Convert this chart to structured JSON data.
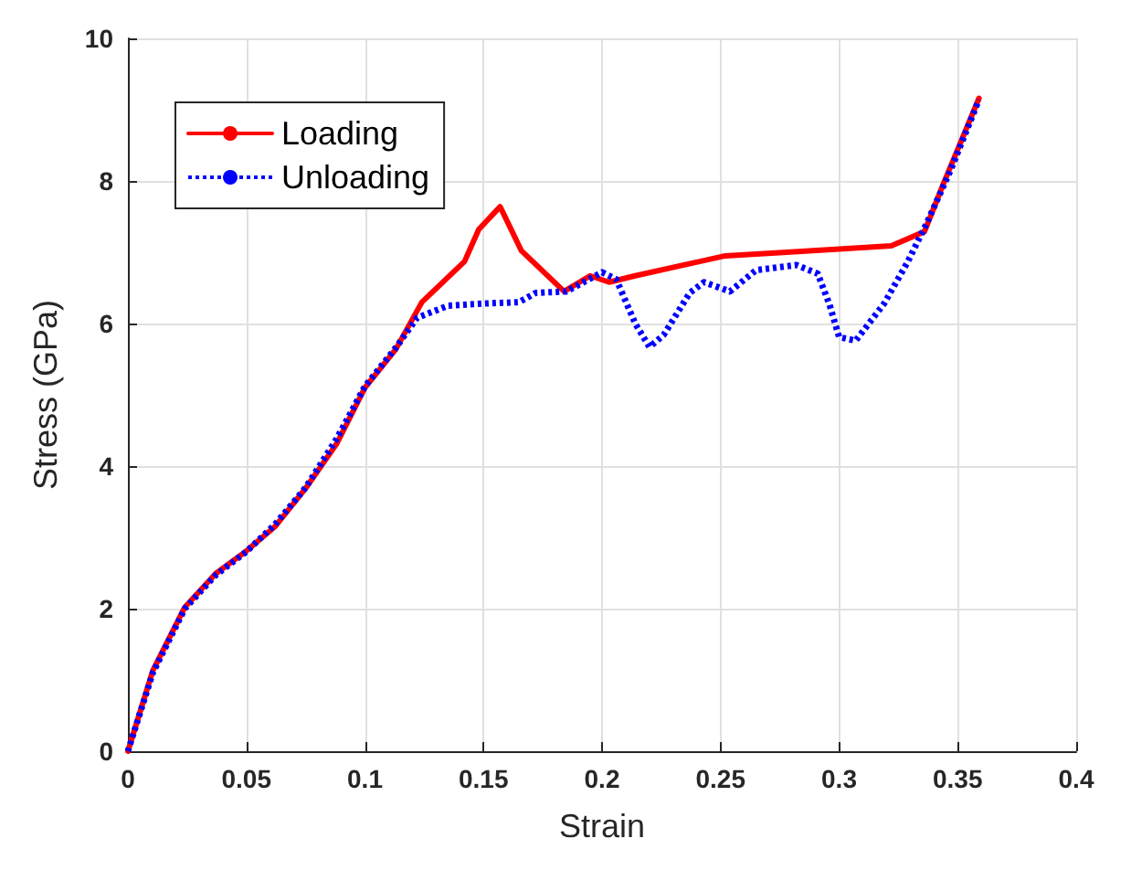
{
  "chart_data": {
    "type": "line",
    "xlabel": "Strain",
    "ylabel": "Stress (GPa)",
    "xlim": [
      0,
      0.4
    ],
    "ylim": [
      0,
      10
    ],
    "xticks": [
      0,
      0.05,
      0.1,
      0.15,
      0.2,
      0.25,
      0.3,
      0.35,
      0.4
    ],
    "yticks": [
      0,
      2,
      4,
      6,
      8,
      10
    ],
    "grid": true,
    "legend": "top left",
    "series": [
      {
        "name": "Loading",
        "color": "#ff0000",
        "line_style": "solid",
        "x": [
          0,
          0.0105,
          0.024,
          0.037,
          0.05,
          0.062,
          0.075,
          0.088,
          0.1,
          0.113,
          0.124,
          0.142,
          0.148,
          0.157,
          0.166,
          0.184,
          0.195,
          0.203,
          0.214,
          0.252,
          0.278,
          0.322,
          0.336,
          0.344,
          0.359
        ],
        "values": [
          0,
          1.13,
          2.02,
          2.49,
          2.81,
          3.15,
          3.69,
          4.31,
          5.1,
          5.64,
          6.3,
          6.87,
          7.32,
          7.64,
          7.02,
          6.45,
          6.67,
          6.58,
          6.67,
          6.95,
          7.0,
          7.09,
          7.29,
          7.96,
          9.16
        ]
      },
      {
        "name": "Unloading",
        "color": "#0000ff",
        "line_style": "dotted",
        "x": [
          0,
          0.0105,
          0.024,
          0.037,
          0.05,
          0.062,
          0.075,
          0.088,
          0.1,
          0.113,
          0.122,
          0.135,
          0.15,
          0.165,
          0.172,
          0.185,
          0.195,
          0.2,
          0.206,
          0.214,
          0.22,
          0.226,
          0.237,
          0.243,
          0.254,
          0.265,
          0.282,
          0.291,
          0.296,
          0.3,
          0.307,
          0.319,
          0.329,
          0.337,
          0.347,
          0.359
        ],
        "values": [
          0,
          1.1,
          2.0,
          2.47,
          2.8,
          3.18,
          3.7,
          4.38,
          5.12,
          5.66,
          6.08,
          6.25,
          6.28,
          6.3,
          6.43,
          6.45,
          6.63,
          6.72,
          6.62,
          6.0,
          5.67,
          5.84,
          6.43,
          6.58,
          6.45,
          6.75,
          6.82,
          6.7,
          6.26,
          5.81,
          5.76,
          6.28,
          6.87,
          7.41,
          8.15,
          9.14
        ]
      }
    ]
  }
}
